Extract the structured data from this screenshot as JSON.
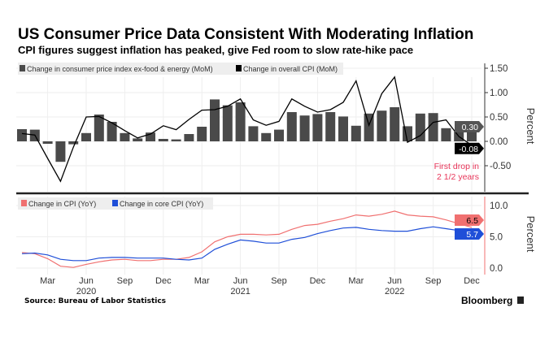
{
  "title": "US Consumer Price Data Consistent With Moderating Inflation",
  "subtitle": "CPI figures suggest inflation has peaked, give Fed room to slow rate-hike pace",
  "source": "Source: Bureau of Labor Statistics",
  "brand": "Bloomberg",
  "chart_data": [
    {
      "type": "bar+line",
      "legend_placement": "top-left",
      "ylabel": "Percent",
      "yticks": [
        "1.50",
        "1.00",
        "0.50",
        "0.00",
        "-0.50"
      ],
      "ylim": [
        -0.9,
        1.6
      ],
      "grid": true,
      "months": [
        "2020-01",
        "2020-02",
        "2020-03",
        "2020-04",
        "2020-05",
        "2020-06",
        "2020-07",
        "2020-08",
        "2020-09",
        "2020-10",
        "2020-11",
        "2020-12",
        "2021-01",
        "2021-02",
        "2021-03",
        "2021-04",
        "2021-05",
        "2021-06",
        "2021-07",
        "2021-08",
        "2021-09",
        "2021-10",
        "2021-11",
        "2021-12",
        "2022-01",
        "2022-02",
        "2022-03",
        "2022-04",
        "2022-05",
        "2022-06",
        "2022-07",
        "2022-08",
        "2022-09",
        "2022-10",
        "2022-11",
        "2022-12"
      ],
      "series": [
        {
          "name": "Change in consumer price index ex-food & energy (MoM)",
          "kind": "bar",
          "color": "#4a4a4a",
          "values": [
            0.25,
            0.24,
            -0.05,
            -0.42,
            -0.06,
            0.17,
            0.55,
            0.4,
            0.17,
            0.06,
            0.18,
            0.05,
            0.04,
            0.15,
            0.3,
            0.86,
            0.74,
            0.8,
            0.31,
            0.17,
            0.24,
            0.6,
            0.53,
            0.56,
            0.6,
            0.51,
            0.32,
            0.57,
            0.63,
            0.7,
            0.31,
            0.57,
            0.58,
            0.27,
            0.2,
            0.3
          ],
          "last_label": "0.30"
        },
        {
          "name": "Change in overall CPI (MoM)",
          "kind": "line",
          "color": "#000000",
          "values": [
            0.16,
            0.13,
            -0.35,
            -0.82,
            -0.12,
            0.5,
            0.51,
            0.38,
            0.22,
            0.07,
            0.15,
            0.32,
            0.24,
            0.45,
            0.64,
            0.65,
            0.72,
            0.87,
            0.44,
            0.33,
            0.41,
            0.87,
            0.72,
            0.6,
            0.65,
            0.8,
            1.24,
            0.33,
            0.98,
            1.32,
            -0.02,
            0.12,
            0.39,
            0.44,
            0.1,
            -0.08
          ],
          "last_label": "-0.08"
        }
      ],
      "annotation": {
        "text_line1": "First drop in",
        "text_line2": "2 1/2 years",
        "color": "#e8365a"
      }
    },
    {
      "type": "line",
      "legend_placement": "top-left",
      "ylabel": "Percent",
      "yticks": [
        "10.0",
        "5.0",
        "0.0"
      ],
      "ylim": [
        -1,
        11
      ],
      "grid": true,
      "series": [
        {
          "name": "Change in CPI (YoY)",
          "color": "#f07070",
          "values": [
            2.5,
            2.3,
            1.5,
            0.3,
            0.1,
            0.6,
            1.0,
            1.3,
            1.4,
            1.2,
            1.2,
            1.4,
            1.4,
            1.7,
            2.6,
            4.2,
            5.0,
            5.4,
            5.4,
            5.3,
            5.4,
            6.2,
            6.8,
            7.0,
            7.5,
            7.9,
            8.5,
            8.3,
            8.6,
            9.1,
            8.5,
            8.3,
            8.2,
            7.7,
            7.1,
            6.5
          ],
          "last_label": "6.5"
        },
        {
          "name": "Change in core CPI (YoY)",
          "color": "#1f4fd8",
          "values": [
            2.3,
            2.4,
            2.1,
            1.4,
            1.2,
            1.2,
            1.6,
            1.7,
            1.7,
            1.6,
            1.6,
            1.6,
            1.4,
            1.3,
            1.6,
            3.0,
            3.8,
            4.5,
            4.3,
            4.0,
            4.0,
            4.6,
            4.9,
            5.5,
            6.0,
            6.4,
            6.5,
            6.2,
            6.0,
            5.9,
            5.9,
            6.3,
            6.6,
            6.3,
            6.0,
            5.7
          ],
          "last_label": "5.7"
        }
      ],
      "xticks": [
        "Mar",
        "Jun",
        "Sep",
        "Dec",
        "Mar",
        "Jun",
        "Sep",
        "Dec",
        "Mar",
        "Jun",
        "Sep",
        "Dec"
      ],
      "years": [
        "2020",
        "2021",
        "2022"
      ]
    }
  ]
}
